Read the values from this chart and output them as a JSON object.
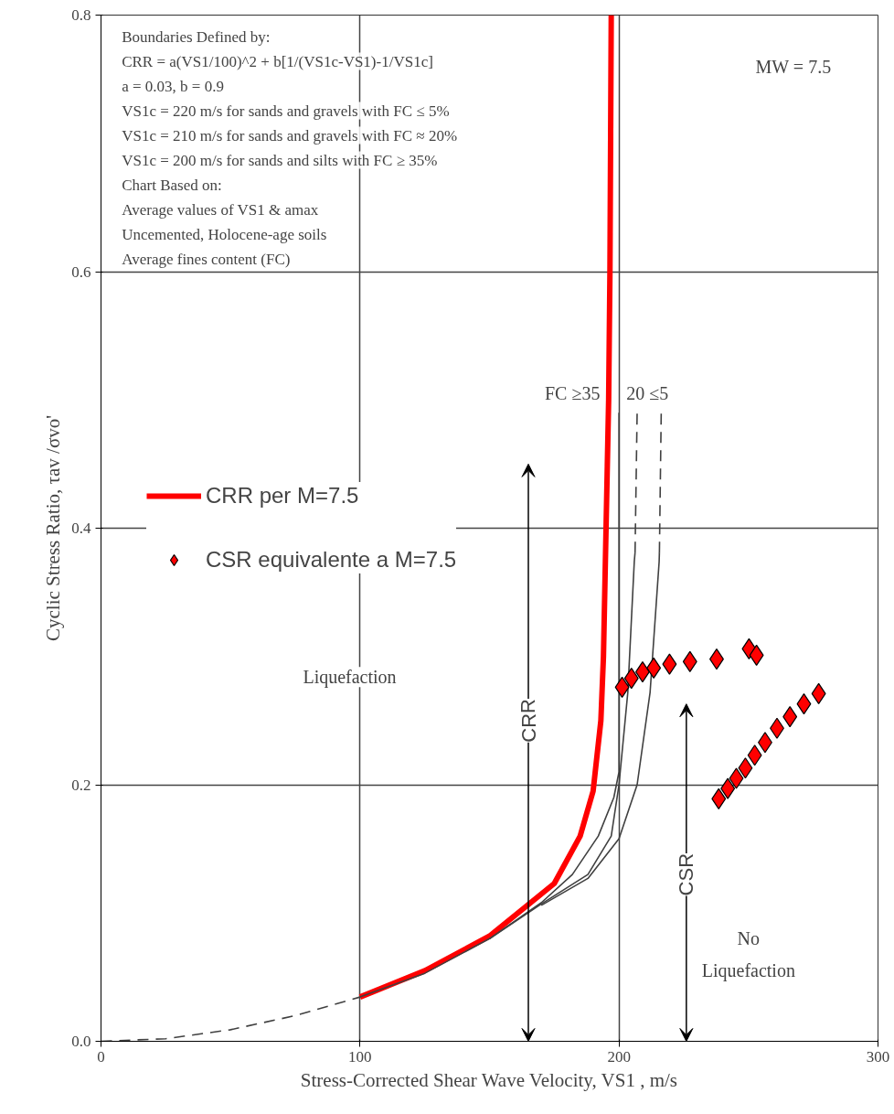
{
  "chart_data": {
    "type": "line",
    "xlabel": "Stress-Corrected Shear Wave Velocity, VS1 , m/s",
    "ylabel": "Cyclic Stress Ratio, τav /σvo'",
    "xlim": [
      0,
      300
    ],
    "ylim": [
      0,
      0.8
    ],
    "xticks": [
      0,
      100,
      200,
      300
    ],
    "yticks": [
      {
        "value": 0,
        "label": "0.0"
      },
      0.2,
      0.4,
      0.6,
      0.8
    ],
    "grid": true,
    "legend": "left",
    "line_style": "solid",
    "marker": "none",
    "series": [
      {
        "name": "CRR per M=7.5",
        "color": "#ff0000",
        "x": [
          100,
          125,
          150,
          175,
          185,
          190,
          193,
          194,
          195,
          196,
          196.5,
          197
        ],
        "values": [
          0.0345,
          0.055,
          0.082,
          0.123,
          0.16,
          0.195,
          0.25,
          0.3,
          0.4,
          0.5,
          0.6,
          0.8
        ]
      },
      {
        "color": "#404040",
        "x": [
          0,
          25,
          50,
          75,
          100
        ],
        "values": [
          0,
          0.002,
          0.009,
          0.02,
          0.0345
        ],
        "line_style": "dashed"
      },
      {
        "color": "#404040",
        "x": [
          100,
          125,
          150,
          170,
          182,
          192,
          198,
          200,
          200
        ],
        "values": [
          0.0345,
          0.053,
          0.08,
          0.108,
          0.13,
          0.16,
          0.19,
          0.21,
          0.49
        ]
      },
      {
        "color": "#404040",
        "x": [
          150,
          170,
          188,
          197,
          200,
          203.4,
          205.9,
          206.2
        ],
        "values": [
          0.08,
          0.107,
          0.13,
          0.16,
          0.2,
          0.272,
          0.374,
          0.381
        ]
      },
      {
        "color": "#404040",
        "x": [
          206.2,
          207
        ],
        "values": [
          0.381,
          0.49
        ],
        "line_style": "dashed"
      },
      {
        "color": "#404040",
        "x": [
          170,
          188,
          200,
          207,
          212,
          215.5,
          215.6
        ],
        "values": [
          0.106,
          0.127,
          0.158,
          0.2,
          0.272,
          0.374,
          0.381
        ]
      },
      {
        "color": "#404040",
        "x": [
          215.6,
          216.3
        ],
        "values": [
          0.381,
          0.49
        ],
        "line_style": "dashed"
      },
      {
        "name": "CSR equivalente a M=7.5",
        "type": "scatter",
        "marker": "diamond",
        "color": "#ff0000",
        "x": [
          201.2,
          204.8,
          209.1,
          213.4,
          219.5,
          227.4,
          237.7,
          250.2,
          253.1,
          238.5,
          242.0,
          245.3,
          248.8,
          252.4,
          256.4,
          261.0,
          266.0,
          271.4,
          277.1
        ],
        "values": [
          0.276,
          0.283,
          0.288,
          0.291,
          0.294,
          0.296,
          0.298,
          0.306,
          0.301,
          0.189,
          0.197,
          0.205,
          0.213,
          0.223,
          0.233,
          0.244,
          0.253,
          0.263,
          0.271
        ]
      }
    ],
    "annotations": [
      "Boundaries Defined by:",
      "CRR = a(VS1/100)^2 + b[1/(VS1c-VS1)-1/VS1c]",
      "a = 0.03, b = 0.9",
      "VS1c = 220 m/s for sands and gravels with FC ≤ 5%",
      "VS1c = 210 m/s for sands and gravels with FC ≈ 20%",
      "VS1c = 200 m/s for sands and silts with FC ≥ 35%",
      "Chart Based on:",
      "Average values of VS1 & amax",
      "Uncemented, Holocene-age soils",
      "Average fines content (FC)",
      "MW = 7.5",
      "Liquefaction",
      "No",
      "Liquefaction",
      "FC ≥35",
      "20 ≤5",
      "CRR",
      "CSR"
    ]
  }
}
